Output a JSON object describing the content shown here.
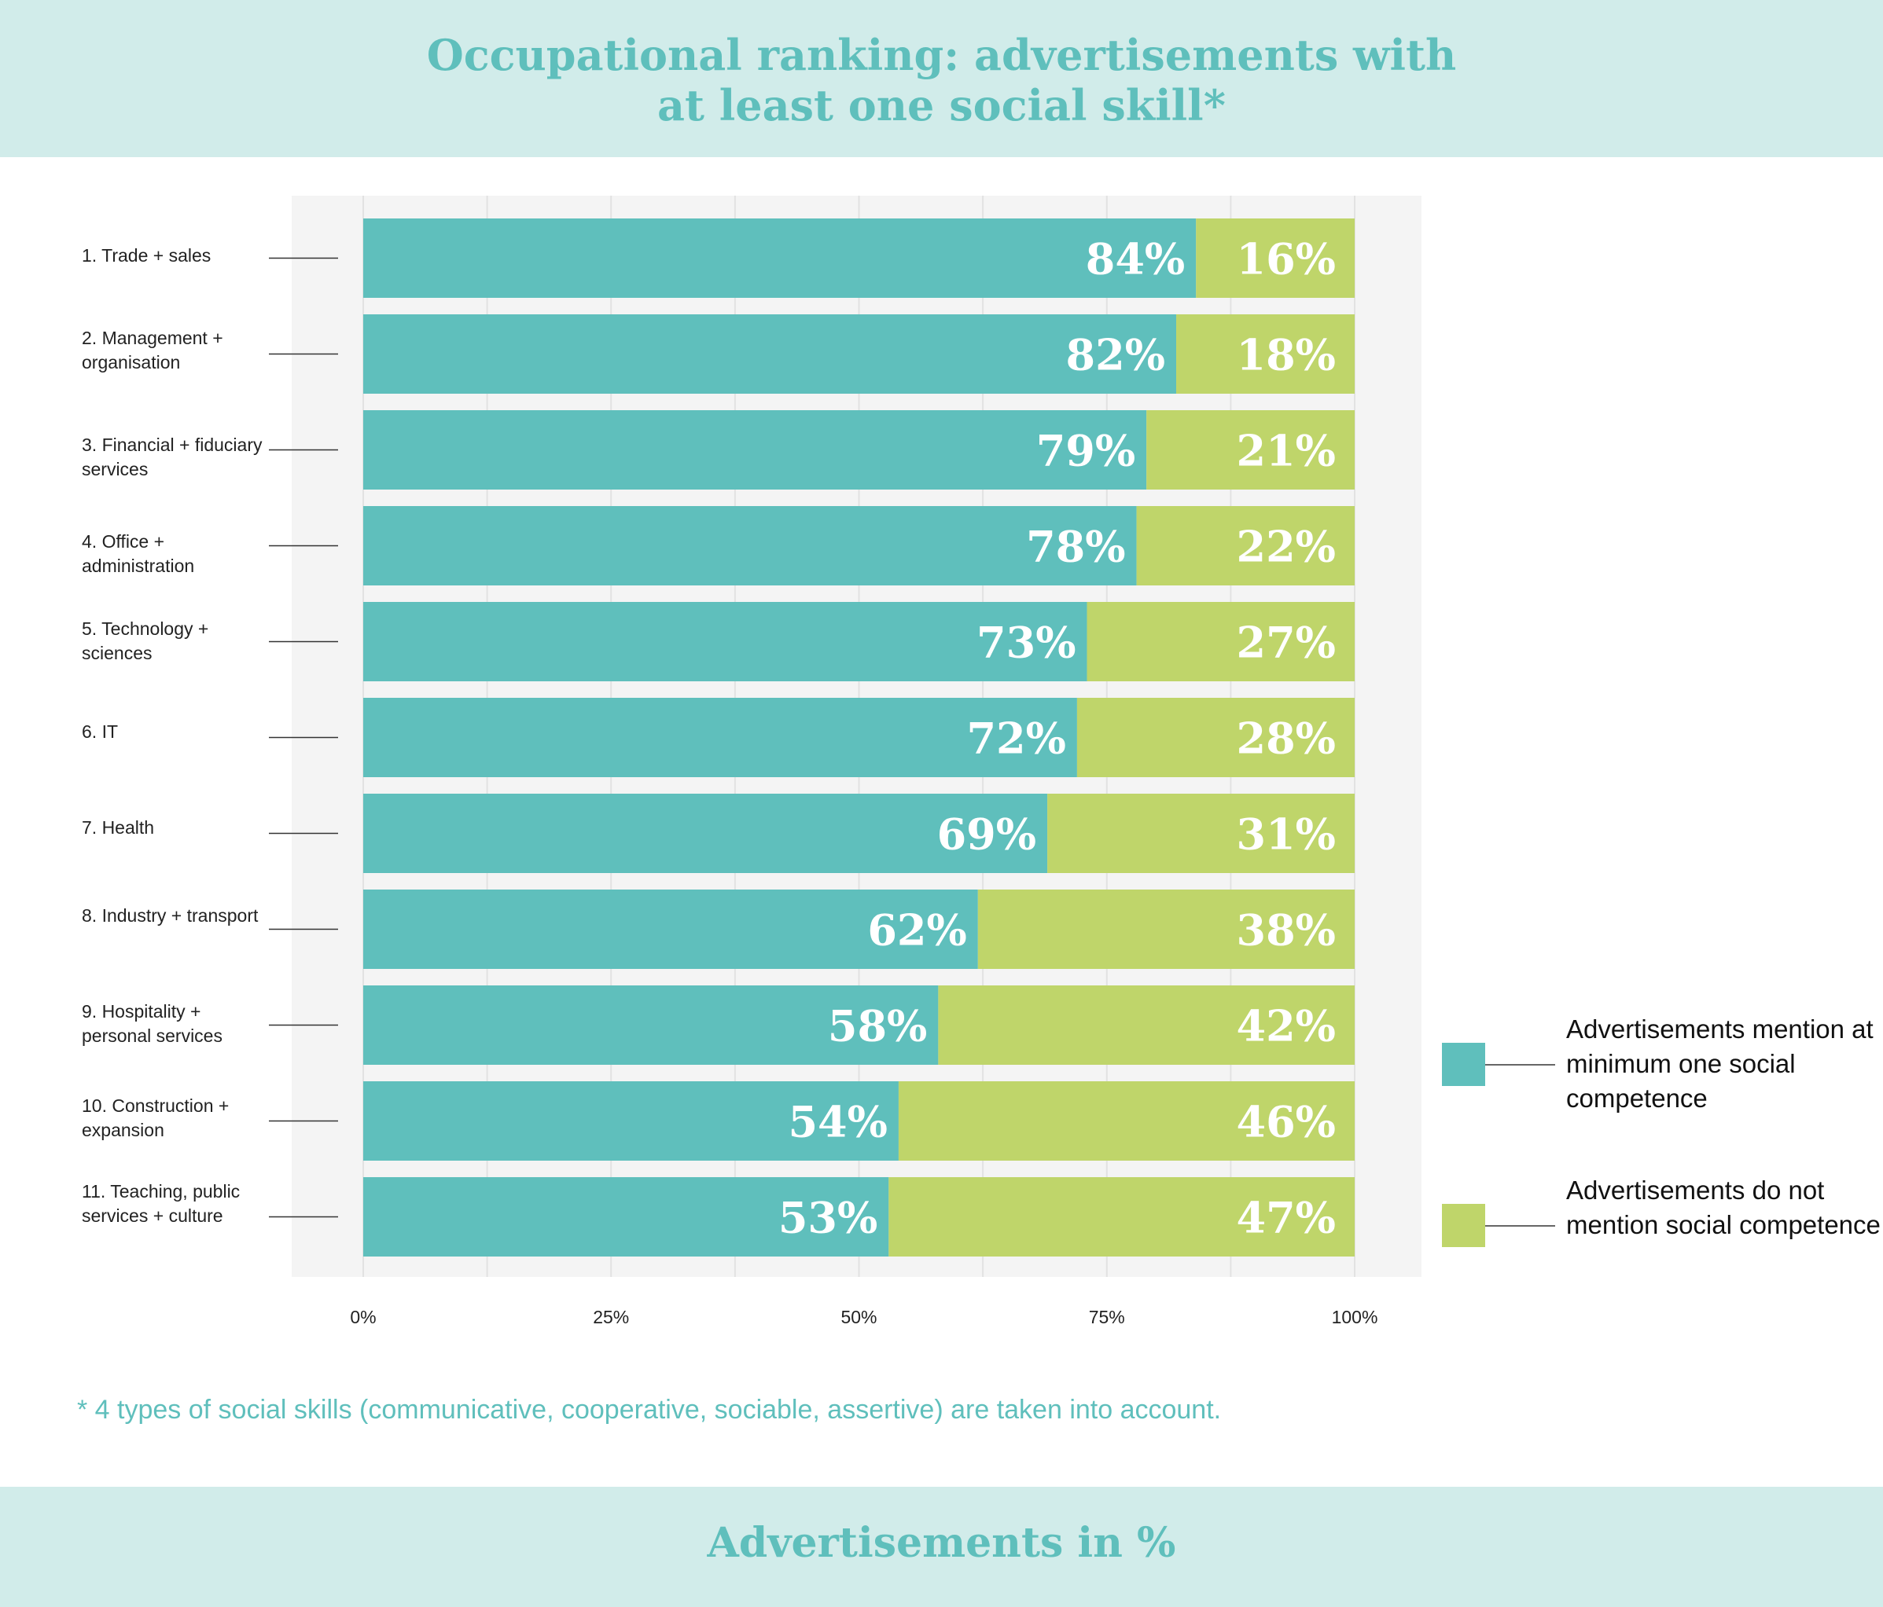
{
  "title_lines": [
    "Occupational ranking: advertisements with",
    "at least one social skill*"
  ],
  "footnote": "* 4 types of social skills (communicative, cooperative, sociable, assertive) are taken into account.",
  "footer_title": "Advertisements in %",
  "colors": {
    "mention": "#5fbfbc",
    "no_mention": "#bfd56a",
    "accent_text": "#5fbfbc",
    "band": "#d1ecea"
  },
  "chart_data": {
    "type": "bar",
    "orientation": "horizontal",
    "stacked": true,
    "title": "Occupational ranking: advertisements with at least one social skill*",
    "xlabel": "Advertisements in %",
    "xlim": [
      0,
      100
    ],
    "x_ticks": [
      "0%",
      "25%",
      "50%",
      "75%",
      "100%"
    ],
    "grid": true,
    "legend_position": "right",
    "categories": [
      "1. Trade + sales",
      "2. Management + organisation",
      "3. Financial + fiduciary services",
      "4. Office + administration",
      "5. Technology + sciences",
      "6. IT",
      "7. Health",
      "8. Industry + transport",
      "9. Hospitality + personal services",
      "10. Construction + expansion",
      "11. Teaching, public services + culture"
    ],
    "series": [
      {
        "name": "Advertisements mention at minimum one social competence",
        "values": [
          84,
          82,
          79,
          78,
          73,
          72,
          69,
          62,
          58,
          54,
          53
        ],
        "labels": [
          "84%",
          "82%",
          "79%",
          "78%",
          "73%",
          "72%",
          "69%",
          "62%",
          "58%",
          "54%",
          "53%"
        ]
      },
      {
        "name": "Advertisements do not mention social competence",
        "values": [
          16,
          18,
          21,
          22,
          27,
          28,
          31,
          38,
          42,
          46,
          47
        ],
        "labels": [
          "16%",
          "18%",
          "21%",
          "22%",
          "27%",
          "28%",
          "31%",
          "38%",
          "42%",
          "46%",
          "47%"
        ]
      }
    ]
  }
}
